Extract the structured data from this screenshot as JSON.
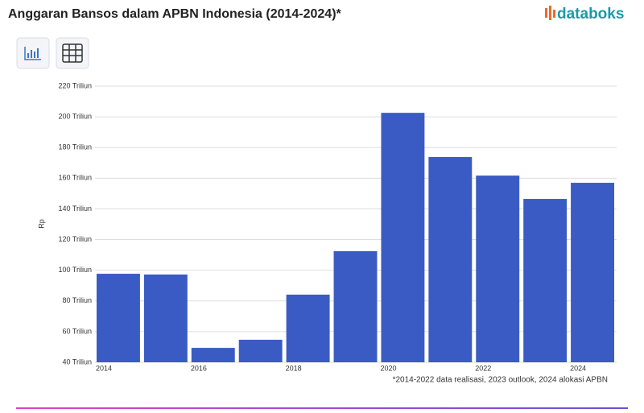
{
  "logo": "databoks",
  "chart_data": {
    "type": "bar",
    "title": "Anggaran Bansos dalam APBN Indonesia (2014-2024)*",
    "y_label": "Rp",
    "footnote": "*2014-2022 data realisasi, 2023 outlook, 2024 alokasi APBN",
    "categories": [
      "2014",
      null,
      "2016",
      null,
      "2018",
      null,
      "2020",
      null,
      "2022",
      null,
      "2024"
    ],
    "values": [
      97.7,
      97.2,
      49.4,
      54.7,
      84.1,
      112.4,
      202.6,
      173.8,
      161.7,
      146.5,
      157
    ],
    "color": "#3b5bc4",
    "ylim": [
      40,
      220
    ],
    "yticks": [
      {
        "value": 40,
        "label": "40 Triliun"
      },
      {
        "value": 60,
        "label": "60 Triliun"
      },
      {
        "value": 80,
        "label": "80 Triliun"
      },
      {
        "value": 100,
        "label": "100 Triliun"
      },
      {
        "value": 120,
        "label": "120 Triliun"
      },
      {
        "value": 140,
        "label": "140 Triliun"
      },
      {
        "value": 160,
        "label": "160 Triliun"
      },
      {
        "value": 180,
        "label": "180 Triliun"
      },
      {
        "value": 200,
        "label": "200 Triliun"
      },
      {
        "value": 220,
        "label": "220 Triliun"
      }
    ],
    "grid": true
  }
}
